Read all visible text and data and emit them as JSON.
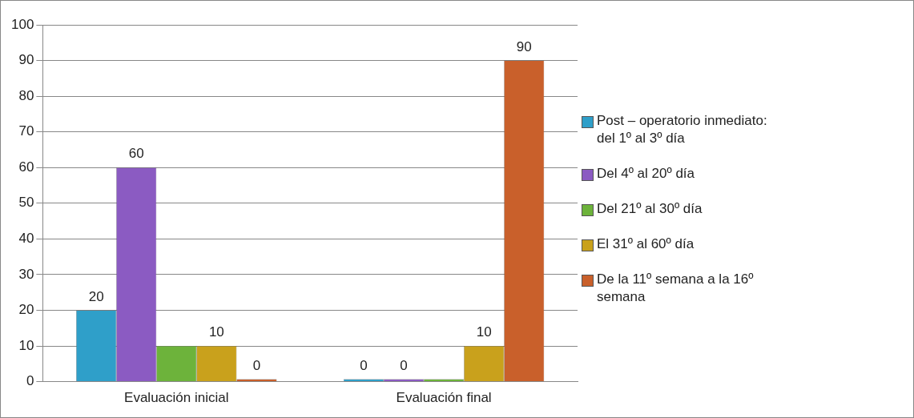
{
  "chart_data": {
    "type": "bar",
    "categories": [
      "Evaluación inicial",
      "Evaluación final"
    ],
    "series": [
      {
        "name": "Post – operatorio inmediato: del 1º al 3º día",
        "color": "#2f9fc9",
        "values": [
          20,
          0
        ],
        "value_labels": [
          "20",
          "0"
        ]
      },
      {
        "name": "Del 4º al 20º día",
        "color": "#8b5bc2",
        "values": [
          60,
          0
        ],
        "value_labels": [
          "60",
          "0"
        ]
      },
      {
        "name": "Del 21º al 30º día",
        "color": "#6db33b",
        "values": [
          10,
          0
        ],
        "value_labels": [
          null,
          null
        ]
      },
      {
        "name": "El 31º al 60º día",
        "color": "#c9a11c",
        "values": [
          10,
          10
        ],
        "value_labels": [
          "10",
          "10"
        ]
      },
      {
        "name": "De la 11º semana a la 16º semana",
        "color": "#c9602b",
        "values": [
          0,
          90
        ],
        "value_labels": [
          "0",
          "90"
        ]
      }
    ],
    "ylim": [
      0,
      100
    ],
    "yticks": [
      0,
      10,
      20,
      30,
      40,
      50,
      60,
      70,
      80,
      90,
      100
    ],
    "grid": "y",
    "legend": "right"
  }
}
